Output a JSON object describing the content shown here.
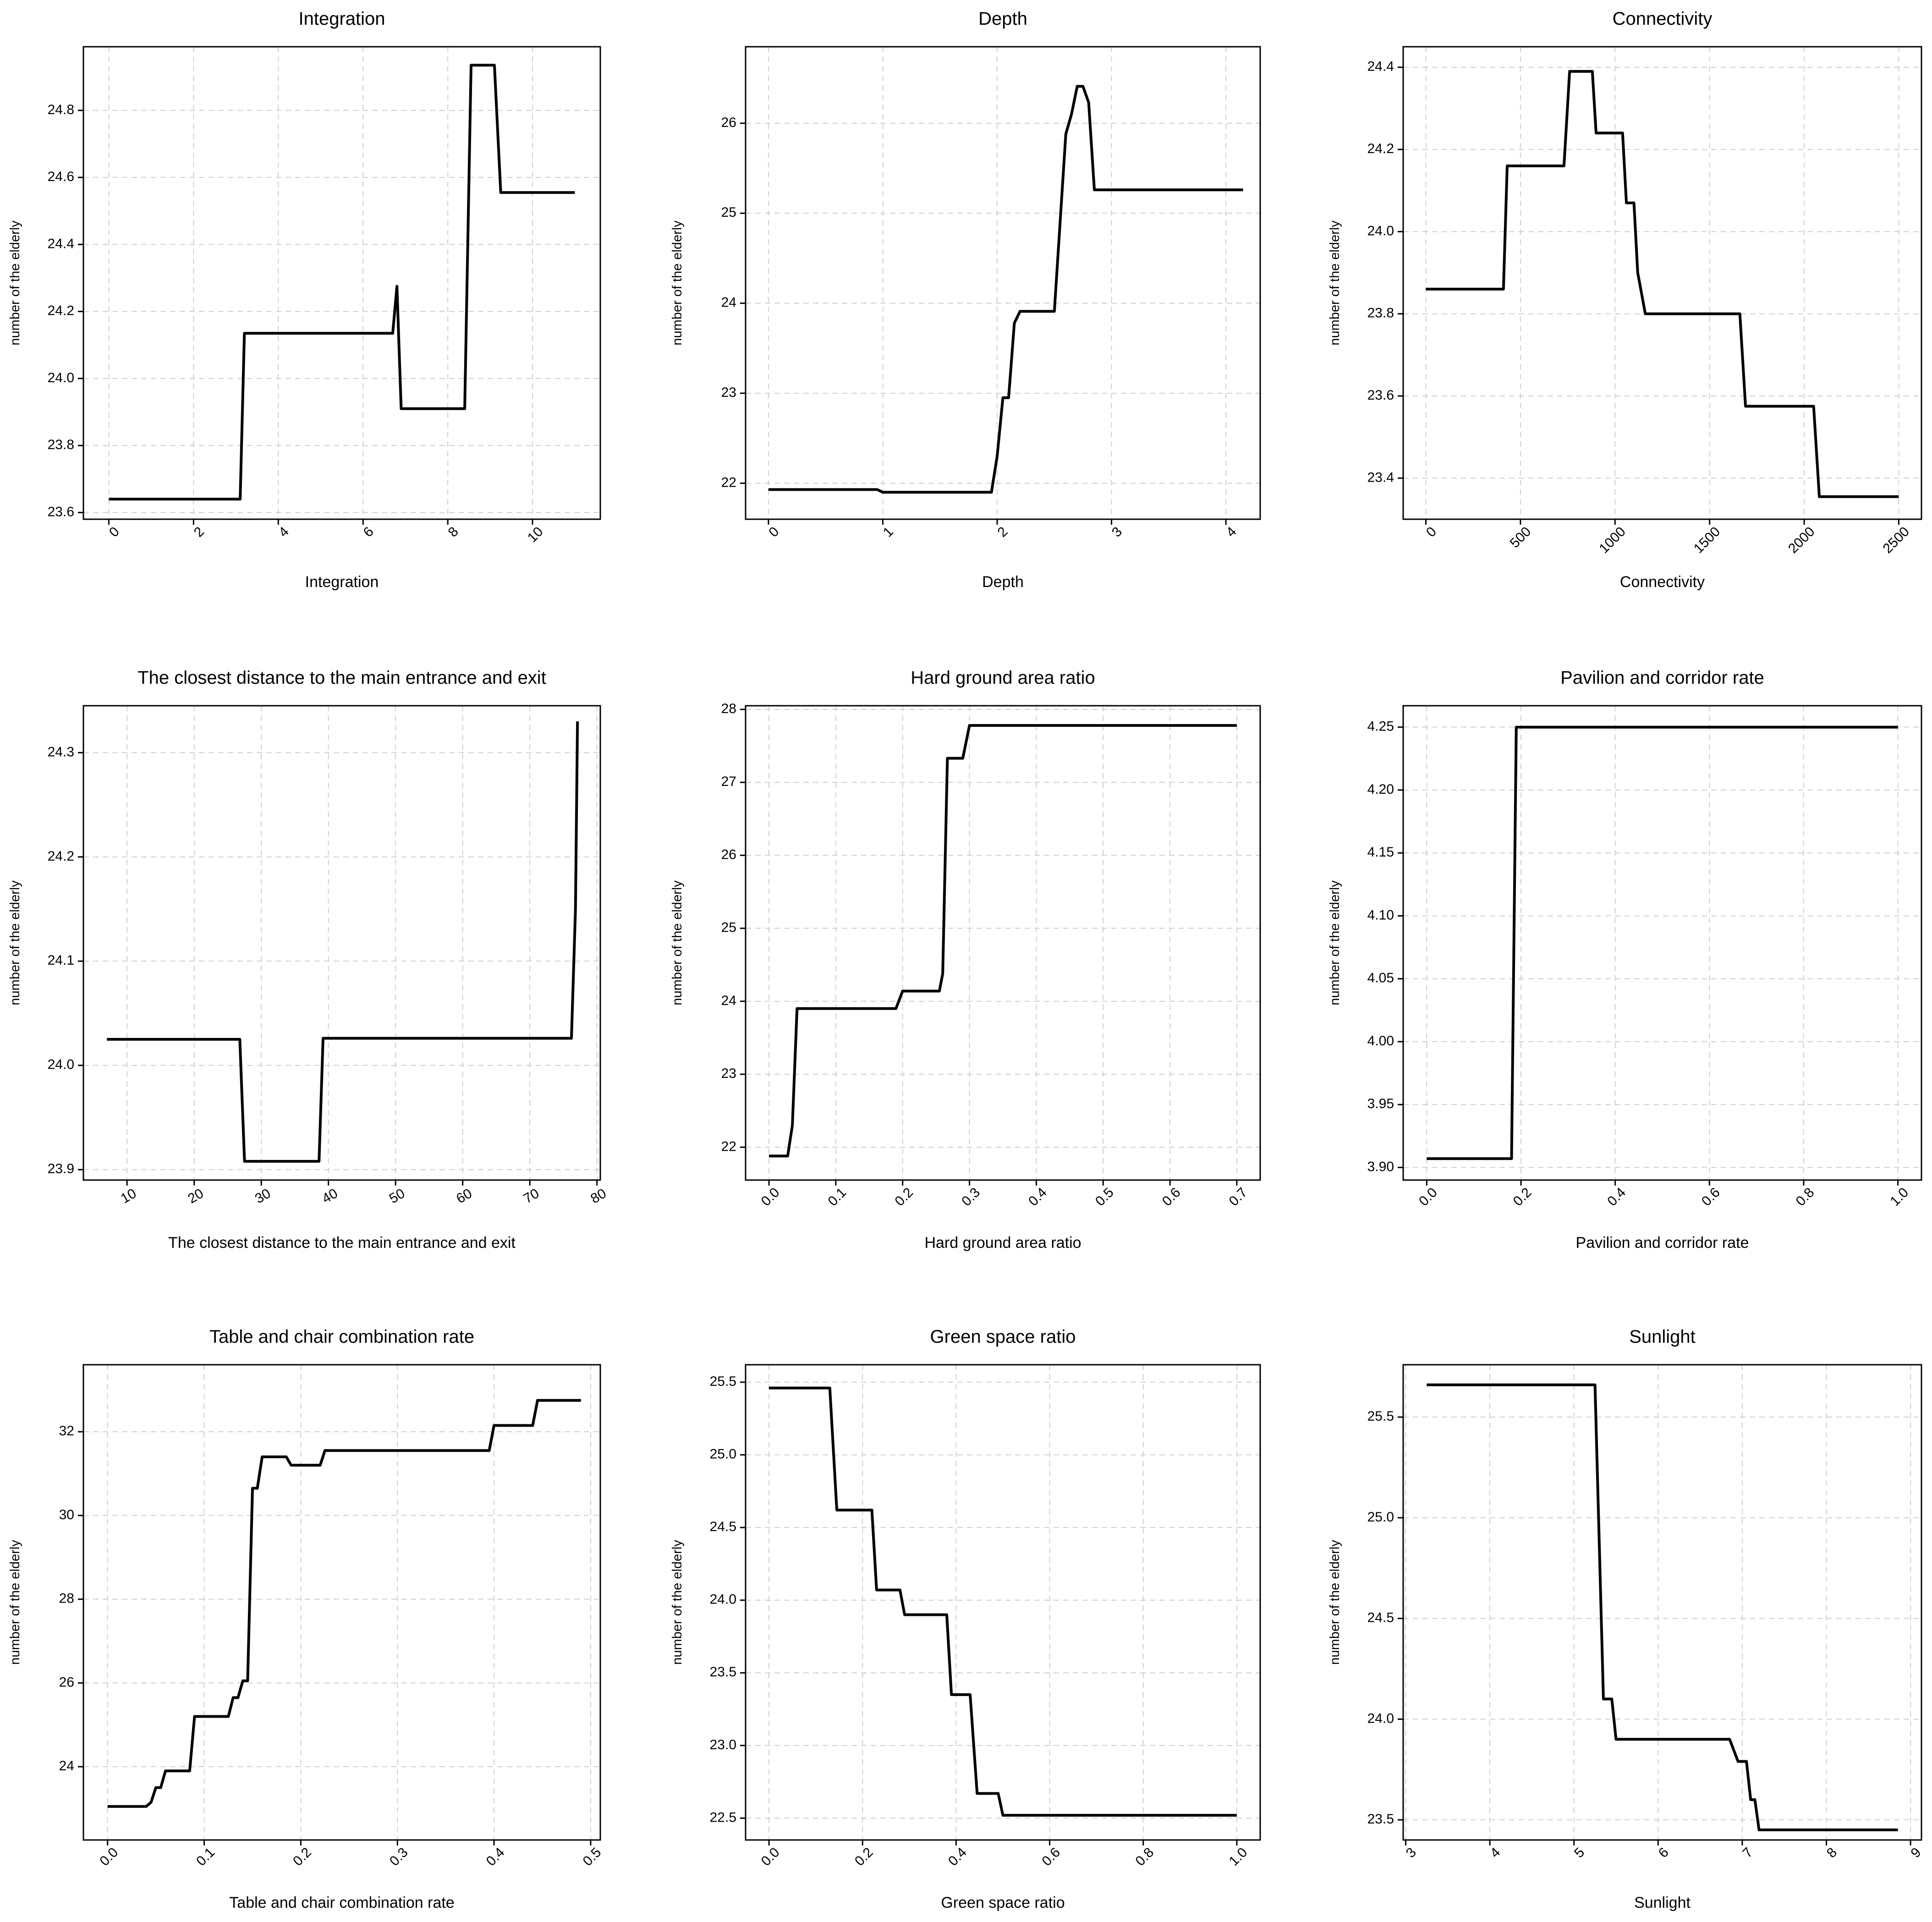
{
  "figure": {
    "ylabel": "number of the elderly"
  },
  "chart_data": [
    {
      "type": "line",
      "title": "Integration",
      "xlabel": "Integration",
      "ylabel": "number of the elderly",
      "xlim": [
        -0.6,
        11.6
      ],
      "ylim": [
        23.58,
        24.99
      ],
      "xticks": [
        0,
        2,
        4,
        6,
        8,
        10
      ],
      "yticks": [
        23.6,
        23.8,
        24.0,
        24.2,
        24.4,
        24.6,
        24.8
      ],
      "xtick_decimals": 0,
      "ytick_decimals": 1,
      "xtick_rotation": -45,
      "grid": true,
      "series": [
        {
          "x": [
            0,
            3.1,
            3.2,
            6.7,
            6.8,
            6.9,
            8.4,
            8.55,
            9.1,
            9.25,
            11
          ],
          "y": [
            23.64,
            23.64,
            24.135,
            24.135,
            24.275,
            23.91,
            23.91,
            24.935,
            24.935,
            24.555,
            24.555
          ]
        }
      ]
    },
    {
      "type": "line",
      "title": "Depth",
      "xlabel": "Depth",
      "ylabel": "number of the elderly",
      "xlim": [
        -0.2,
        4.3
      ],
      "ylim": [
        21.6,
        26.85
      ],
      "xticks": [
        0,
        1,
        2,
        3,
        4
      ],
      "yticks": [
        22,
        23,
        24,
        25,
        26
      ],
      "xtick_decimals": 0,
      "ytick_decimals": 0,
      "xtick_rotation": -45,
      "grid": true,
      "series": [
        {
          "x": [
            0,
            0.95,
            1.0,
            1.95,
            2.0,
            2.05,
            2.1,
            2.15,
            2.2,
            2.25,
            2.5,
            2.6,
            2.65,
            2.7,
            2.75,
            2.8,
            2.85,
            4.15
          ],
          "y": [
            21.93,
            21.93,
            21.9,
            21.9,
            22.3,
            22.95,
            22.95,
            23.78,
            23.91,
            23.91,
            23.91,
            25.88,
            26.1,
            26.41,
            26.41,
            26.23,
            25.26,
            25.26
          ]
        }
      ]
    },
    {
      "type": "line",
      "title": "Connectivity",
      "xlabel": "Connectivity",
      "ylabel": "number of the elderly",
      "xlim": [
        -120,
        2620
      ],
      "ylim": [
        23.3,
        24.45
      ],
      "xticks": [
        0,
        500,
        1000,
        1500,
        2000,
        2500
      ],
      "yticks": [
        23.4,
        23.6,
        23.8,
        24.0,
        24.2,
        24.4
      ],
      "xtick_decimals": 0,
      "ytick_decimals": 1,
      "xtick_rotation": -45,
      "grid": true,
      "series": [
        {
          "x": [
            0,
            410,
            430,
            730,
            760,
            880,
            900,
            1040,
            1060,
            1100,
            1120,
            1160,
            1660,
            1690,
            2050,
            2080,
            2500
          ],
          "y": [
            23.86,
            23.86,
            24.16,
            24.16,
            24.39,
            24.39,
            24.24,
            24.24,
            24.07,
            24.07,
            23.9,
            23.8,
            23.8,
            23.575,
            23.575,
            23.355,
            23.355
          ]
        }
      ]
    },
    {
      "type": "line",
      "title": "The closest distance to the main entrance and exit",
      "xlabel": "The closest distance to the main entrance and exit",
      "ylabel": "number of the elderly",
      "xlim": [
        3.5,
        80.5
      ],
      "ylim": [
        23.89,
        24.345
      ],
      "xticks": [
        10,
        20,
        30,
        40,
        50,
        60,
        70,
        80
      ],
      "yticks": [
        23.9,
        24.0,
        24.1,
        24.2,
        24.3
      ],
      "xtick_decimals": 0,
      "ytick_decimals": 1,
      "xtick_rotation": -30,
      "grid": true,
      "series": [
        {
          "x": [
            7,
            26.8,
            27.5,
            38.6,
            39.2,
            76.2,
            76.8,
            77.1
          ],
          "y": [
            24.025,
            24.025,
            23.908,
            23.908,
            24.026,
            24.026,
            24.15,
            24.33
          ]
        }
      ]
    },
    {
      "type": "line",
      "title": "Hard ground area ratio",
      "xlabel": "Hard ground area ratio",
      "ylabel": "number of the elderly",
      "xlim": [
        -0.035,
        0.735
      ],
      "ylim": [
        21.55,
        28.05
      ],
      "xticks": [
        0.0,
        0.1,
        0.2,
        0.3,
        0.4,
        0.5,
        0.6,
        0.7
      ],
      "yticks": [
        22,
        23,
        24,
        25,
        26,
        27,
        28
      ],
      "xtick_decimals": 1,
      "ytick_decimals": 0,
      "xtick_rotation": -45,
      "grid": true,
      "series": [
        {
          "x": [
            0,
            0.028,
            0.035,
            0.042,
            0.19,
            0.2,
            0.255,
            0.26,
            0.267,
            0.29,
            0.3,
            0.7
          ],
          "y": [
            21.88,
            21.88,
            22.3,
            23.9,
            23.9,
            24.14,
            24.14,
            24.38,
            27.33,
            27.33,
            27.78,
            27.78
          ]
        }
      ]
    },
    {
      "type": "line",
      "title": "Pavilion and corridor rate",
      "xlabel": "Pavilion and corridor rate",
      "ylabel": "number of the elderly",
      "xlim": [
        -0.05,
        1.05
      ],
      "ylim": [
        3.89,
        4.267
      ],
      "xticks": [
        0.0,
        0.2,
        0.4,
        0.6,
        0.8,
        1.0
      ],
      "yticks": [
        3.9,
        3.95,
        4.0,
        4.05,
        4.1,
        4.15,
        4.2,
        4.25
      ],
      "xtick_decimals": 1,
      "ytick_decimals": 2,
      "xtick_rotation": -45,
      "grid": true,
      "series": [
        {
          "x": [
            0,
            0.18,
            0.19,
            1.0
          ],
          "y": [
            3.907,
            3.907,
            4.25,
            4.25
          ]
        }
      ]
    },
    {
      "type": "line",
      "title": "Table and chair combination rate",
      "xlabel": "Table and chair combination rate",
      "ylabel": "number of the elderly",
      "xlim": [
        -0.025,
        0.51
      ],
      "ylim": [
        22.25,
        33.6
      ],
      "xticks": [
        0.0,
        0.1,
        0.2,
        0.3,
        0.4,
        0.5
      ],
      "yticks": [
        24,
        26,
        28,
        30,
        32
      ],
      "xtick_decimals": 1,
      "ytick_decimals": 0,
      "xtick_rotation": -45,
      "grid": true,
      "series": [
        {
          "x": [
            0,
            0.04,
            0.045,
            0.05,
            0.055,
            0.06,
            0.065,
            0.085,
            0.09,
            0.125,
            0.13,
            0.135,
            0.14,
            0.145,
            0.15,
            0.155,
            0.16,
            0.165,
            0.17,
            0.185,
            0.19,
            0.22,
            0.225,
            0.395,
            0.4,
            0.44,
            0.445,
            0.49
          ],
          "y": [
            23.05,
            23.05,
            23.15,
            23.5,
            23.5,
            23.9,
            23.9,
            23.9,
            25.2,
            25.2,
            25.65,
            25.65,
            26.05,
            26.05,
            30.65,
            30.65,
            31.4,
            31.4,
            31.4,
            31.4,
            31.2,
            31.2,
            31.55,
            31.55,
            32.15,
            32.15,
            32.75,
            32.75
          ]
        }
      ]
    },
    {
      "type": "line",
      "title": "Green space ratio",
      "xlabel": "Green space ratio",
      "ylabel": "number of the elderly",
      "xlim": [
        -0.05,
        1.05
      ],
      "ylim": [
        22.35,
        25.62
      ],
      "xticks": [
        0.0,
        0.2,
        0.4,
        0.6,
        0.8,
        1.0
      ],
      "yticks": [
        22.5,
        23.0,
        23.5,
        24.0,
        24.5,
        25.0,
        25.5
      ],
      "xtick_decimals": 1,
      "ytick_decimals": 1,
      "xtick_rotation": -45,
      "grid": true,
      "series": [
        {
          "x": [
            0,
            0.13,
            0.145,
            0.22,
            0.23,
            0.28,
            0.29,
            0.38,
            0.39,
            0.43,
            0.445,
            0.49,
            0.5,
            1.0
          ],
          "y": [
            25.46,
            25.46,
            24.62,
            24.62,
            24.07,
            24.07,
            23.9,
            23.9,
            23.35,
            23.35,
            22.67,
            22.67,
            22.52,
            22.52
          ]
        }
      ]
    },
    {
      "type": "line",
      "title": "Sunlight",
      "xlabel": "Sunlight",
      "ylabel": "number of the elderly",
      "xlim": [
        2.97,
        9.13
      ],
      "ylim": [
        23.4,
        25.76
      ],
      "xticks": [
        3,
        4,
        5,
        6,
        7,
        8,
        9
      ],
      "yticks": [
        23.5,
        24.0,
        24.5,
        25.0,
        25.5
      ],
      "xtick_decimals": 0,
      "ytick_decimals": 1,
      "xtick_rotation": -45,
      "grid": true,
      "series": [
        {
          "x": [
            3.25,
            5.25,
            5.35,
            5.45,
            5.5,
            6.85,
            6.95,
            7.05,
            7.1,
            7.15,
            7.2,
            8.85
          ],
          "y": [
            25.66,
            25.66,
            24.1,
            24.1,
            23.9,
            23.9,
            23.79,
            23.79,
            23.6,
            23.6,
            23.45,
            23.45
          ]
        }
      ]
    }
  ]
}
